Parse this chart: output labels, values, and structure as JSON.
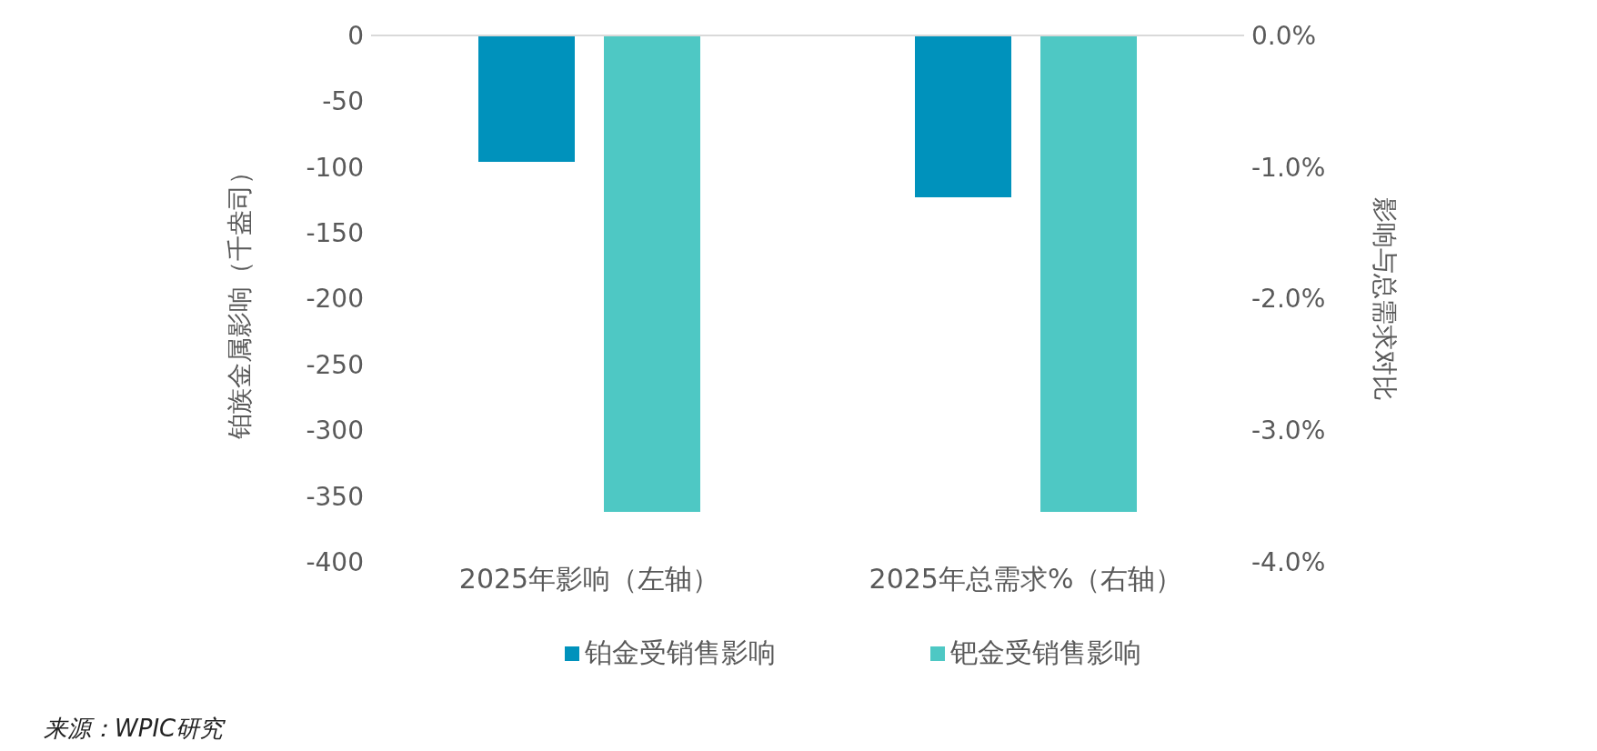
{
  "chart_data": {
    "type": "bar",
    "categories": [
      "2025年影响（左轴）",
      "2025年总需求%（右轴）"
    ],
    "ylabel": "铂族金属影响（千盎司）",
    "y2label": "影响与总需求对比",
    "series": [
      {
        "name": "铂金受销售影响",
        "color": "#0092bc",
        "values": [
          -96,
          null
        ]
      },
      {
        "name": "钯金受销售影响",
        "color": "#4ec8c4",
        "values": [
          -362,
          null
        ]
      },
      {
        "color": "#0092bc",
        "values": [
          null,
          -1.23
        ],
        "axis": "y2"
      },
      {
        "color": "#4ec8c4",
        "values": [
          null,
          -3.62
        ],
        "axis": "y2"
      }
    ],
    "ylim": [
      -400,
      0
    ],
    "yticks": [
      0,
      -50,
      -100,
      -150,
      -200,
      -250,
      -300,
      -350,
      -400
    ],
    "y2lim": [
      -4,
      0
    ],
    "y2ticks": [
      {
        "value": 0,
        "label": "0.0%"
      },
      {
        "value": -1,
        "label": "-1.0%"
      },
      {
        "value": -2,
        "label": "-2.0%"
      },
      {
        "value": -3,
        "label": "-3.0%"
      },
      {
        "value": -4,
        "label": "-4.0%"
      }
    ],
    "legend": "bottom",
    "annotations": [
      "来源：WPIC研究"
    ]
  }
}
